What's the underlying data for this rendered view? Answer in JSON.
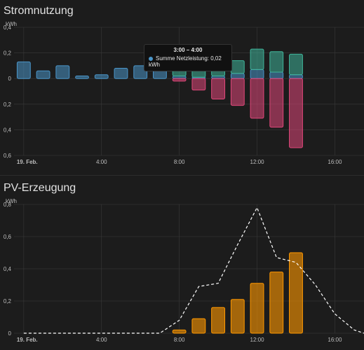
{
  "colors": {
    "background": "#1c1c1c",
    "grid": "#3a3a3a",
    "tick_text": "#bdbdbd",
    "grid_return": "#4a95c9",
    "solar": "#ff9800",
    "to_grid": "#3fb59a",
    "from_grid": "#e0477a"
  },
  "cards": [
    {
      "title": "Stromnutzung"
    },
    {
      "title": "PV-Erzeugung"
    }
  ],
  "tooltip": {
    "title": "3:00 – 4:00",
    "text": "Summe Netzleistung: 0,02 kWh"
  },
  "chart_data": [
    {
      "type": "bar",
      "title": "Stromnutzung",
      "ylabel": "kWh",
      "ylim": [
        -0.6,
        0.4
      ],
      "y_ticks": [
        0.4,
        0.2,
        0,
        -0.2,
        -0.4,
        -0.6
      ],
      "y_tick_labels": [
        "0,4",
        "0,2",
        "0",
        "0,2",
        "0,4",
        "0,6"
      ],
      "x_range": [
        -0.5,
        17.5
      ],
      "x_ticks": [
        0,
        4,
        8,
        12,
        16
      ],
      "x_tick_labels": [
        "19. Feb.",
        "4:00",
        "8:00",
        "12:00",
        "16:00"
      ],
      "grid": true,
      "categories": [
        0,
        1,
        2,
        3,
        4,
        5,
        6,
        7,
        8,
        9,
        10,
        11,
        12,
        13,
        14
      ],
      "series": [
        {
          "values": [
            0.13,
            0.06,
            0.1,
            0.02,
            0.03,
            0.08,
            0.1,
            0.07,
            0.02,
            0.01,
            0.02,
            0.04,
            0.07,
            0.05,
            0.03
          ]
        },
        {
          "values": [
            0,
            0,
            0,
            0,
            0,
            0,
            0,
            0.02,
            0.08,
            0.09,
            0.1,
            0.1,
            0.16,
            0.16,
            0.16
          ]
        },
        {
          "values": [
            0,
            0,
            0,
            0,
            0,
            0,
            0,
            0,
            -0.02,
            -0.09,
            -0.16,
            -0.21,
            -0.31,
            -0.38,
            -0.54
          ]
        }
      ]
    },
    {
      "type": "bar",
      "title": "PV-Erzeugung",
      "ylabel": "kWh",
      "ylim": [
        0,
        0.8
      ],
      "y_ticks": [
        0,
        0.2,
        0.4,
        0.6,
        0.8
      ],
      "y_tick_labels": [
        "0",
        "0,2",
        "0,4",
        "0,6",
        "0,8"
      ],
      "x_range": [
        -0.5,
        17.5
      ],
      "x_ticks": [
        0,
        4,
        8,
        12,
        16
      ],
      "x_tick_labels": [
        "19. Feb.",
        "4:00",
        "8:00",
        "12:00",
        "16:00"
      ],
      "grid": true,
      "categories": [
        8,
        9,
        10,
        11,
        12,
        13,
        14
      ],
      "values": [
        0.02,
        0.09,
        0.16,
        0.21,
        0.31,
        0.38,
        0.5
      ],
      "forecast": {
        "x": [
          0,
          1,
          2,
          3,
          4,
          5,
          6,
          7,
          8,
          9,
          10,
          11,
          12,
          13,
          14,
          15,
          16,
          17,
          17.5
        ],
        "values": [
          0,
          0,
          0,
          0,
          0,
          0,
          0,
          0,
          0.08,
          0.29,
          0.31,
          0.55,
          0.78,
          0.47,
          0.44,
          0.3,
          0.12,
          0.02,
          0
        ]
      }
    }
  ]
}
